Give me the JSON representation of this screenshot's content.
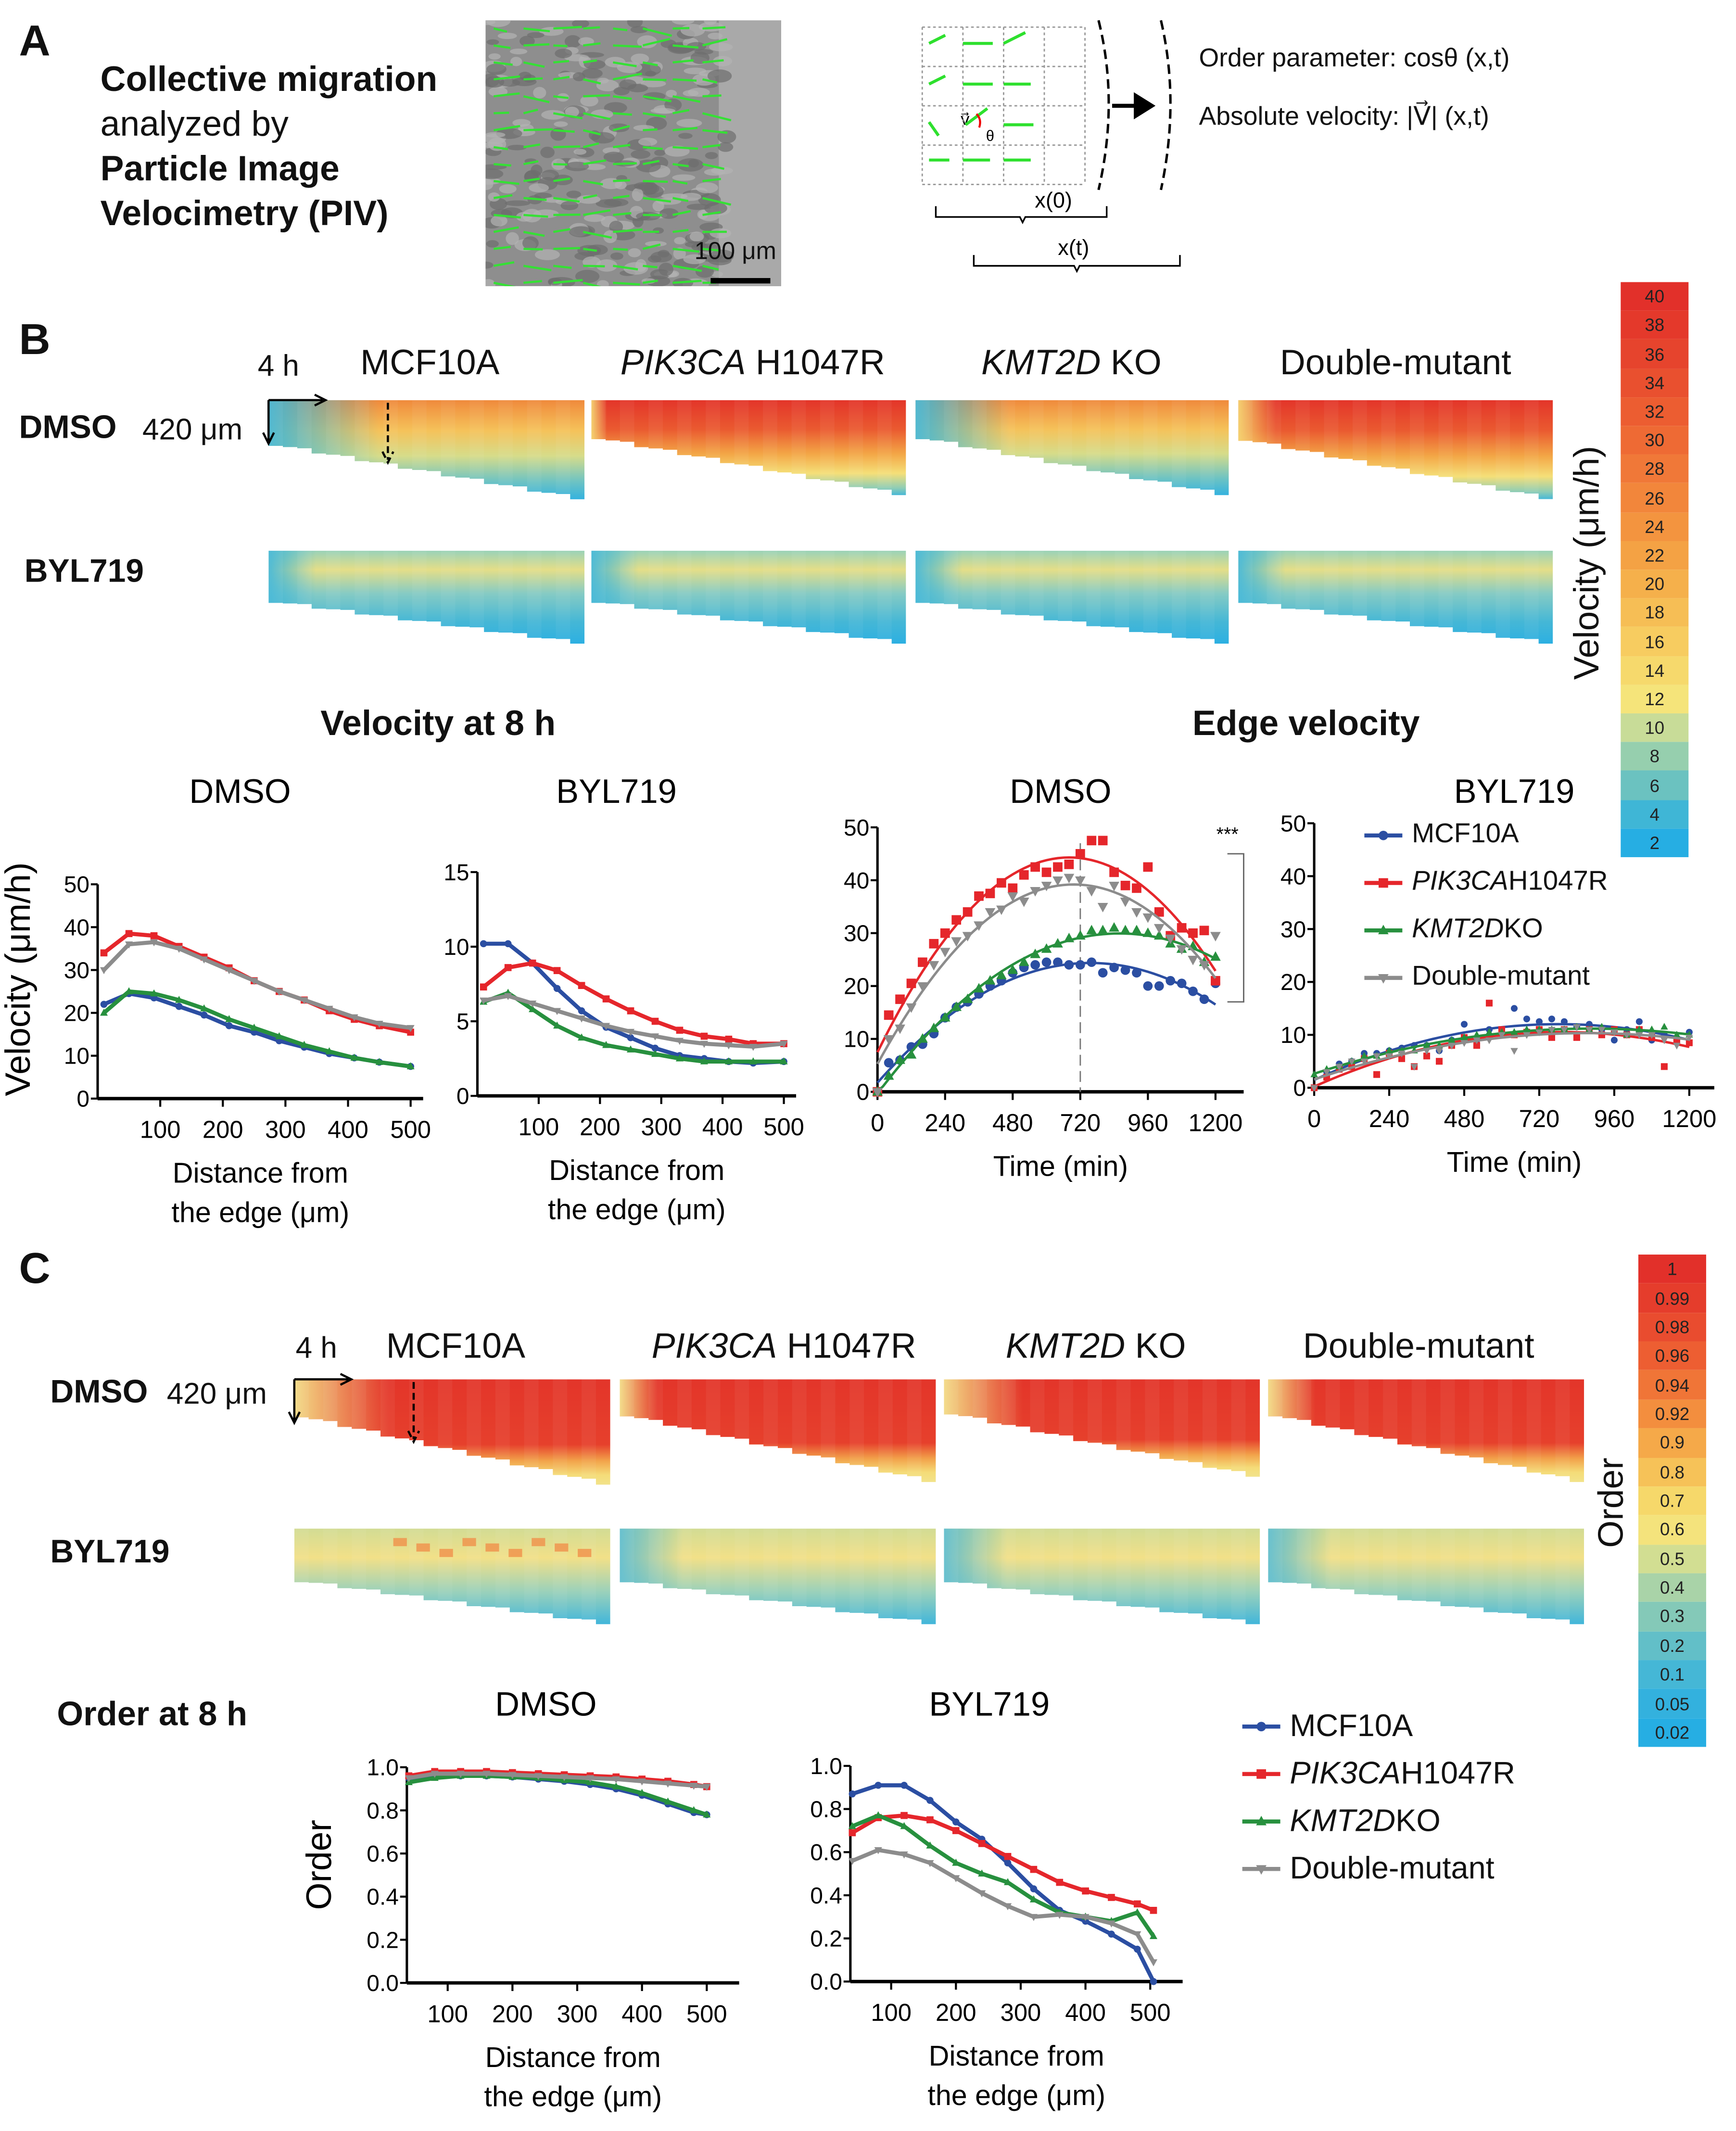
{
  "panel_a": {
    "label": "A",
    "title_lines": [
      "Collective migration",
      "analyzed by",
      "Particle Image",
      "Velocimetry (PIV)"
    ],
    "scale_bar": "100 μm",
    "schematic": {
      "vector": "v⃗",
      "theta": "θ",
      "x0": "x(0)",
      "xt": "x(t)",
      "order_parameter": "Order parameter: cosθ (x,t)",
      "absolute_velocity": "Absolute velocity:  |V⃗| (x,t)"
    }
  },
  "panel_b": {
    "label": "B",
    "time": "4 h",
    "depth": "420 μm",
    "columns": [
      {
        "italic": "",
        "text": "MCF10A"
      },
      {
        "italic": "PIK3CA",
        "text": " H1047R"
      },
      {
        "italic": "KMT2D",
        "text": " KO"
      },
      {
        "italic": "",
        "text": "Double-mutant"
      }
    ],
    "rows": [
      "DMSO",
      "BYL719"
    ],
    "colorbar": {
      "title": "Velocity (μm/h)",
      "labels": [
        "40",
        "38",
        "36",
        "34",
        "32",
        "30",
        "28",
        "26",
        "24",
        "22",
        "20",
        "18",
        "16",
        "14",
        "12",
        "10",
        "8",
        "6",
        "4",
        "2"
      ],
      "colors": [
        "#e2302a",
        "#e4392b",
        "#e6442d",
        "#e9502f",
        "#ec5d31",
        "#ee6a34",
        "#f07838",
        "#f2863b",
        "#f3943f",
        "#f4a244",
        "#f5b04b",
        "#f6be55",
        "#f7cc60",
        "#f6d96c",
        "#f5e47a",
        "#c8dc98",
        "#96cfae",
        "#6bc2c0",
        "#3fb6d6",
        "#26aee3"
      ]
    },
    "section_titles": {
      "velocity_8h": "Velocity at 8 h",
      "edge_velocity": "Edge velocity"
    }
  },
  "panel_c": {
    "label": "C",
    "time": "4 h",
    "depth": "420 μm",
    "columns": [
      {
        "italic": "",
        "text": "MCF10A"
      },
      {
        "italic": "PIK3CA",
        "text": " H1047R"
      },
      {
        "italic": "KMT2D",
        "text": " KO"
      },
      {
        "italic": "",
        "text": "Double-mutant"
      }
    ],
    "rows": [
      "DMSO",
      "BYL719"
    ],
    "colorbar": {
      "title": "Order",
      "labels": [
        "1",
        "0.99",
        "0.98",
        "0.96",
        "0.94",
        "0.92",
        "0.9",
        "0.8",
        "0.7",
        "0.6",
        "0.5",
        "0.4",
        "0.3",
        "0.2",
        "0.1",
        "0.05",
        "0.02"
      ],
      "colors": [
        "#e2302a",
        "#e53d2c",
        "#e94c2f",
        "#ed5e32",
        "#f07537",
        "#f38e3e",
        "#f5a949",
        "#f6c258",
        "#f6d86a",
        "#f4e37c",
        "#d2de92",
        "#a9d3a8",
        "#84c9b8",
        "#62bfc8",
        "#45b7d6",
        "#33b1de",
        "#26aee3"
      ]
    },
    "section_title": "Order at 8 h"
  },
  "legend": {
    "items": [
      {
        "italic": "",
        "text": "MCF10A",
        "color": "#2b4ea2",
        "marker": "circle"
      },
      {
        "italic": "PIK3CA",
        "text": " H1047R",
        "color": "#e5262b",
        "marker": "square"
      },
      {
        "italic": "KMT2D",
        "text": " KO",
        "color": "#27903e",
        "marker": "triangle"
      },
      {
        "italic": "",
        "text": "Double-mutant",
        "color": "#8c8c8c",
        "marker": "triangle-down"
      }
    ]
  },
  "chart_data": [
    {
      "type": "line",
      "title": "DMSO",
      "ylabel": "Velocity (μm/h)",
      "xlabel_lines": [
        "Distance from",
        "the edge (μm)"
      ],
      "xlim": [
        0,
        520
      ],
      "ylim": [
        0,
        50
      ],
      "xticks": [
        100,
        200,
        300,
        400,
        500
      ],
      "yticks": [
        0,
        10,
        20,
        30,
        40,
        50
      ],
      "x": [
        10,
        50,
        90,
        130,
        170,
        210,
        250,
        290,
        330,
        370,
        410,
        450,
        500
      ],
      "series": [
        {
          "name": "MCF10A",
          "values": [
            22,
            24.5,
            23.5,
            21.5,
            19.5,
            17,
            15.5,
            13.5,
            12,
            10.5,
            9.5,
            8.5,
            7.5
          ]
        },
        {
          "name": "PIK3CA H1047R",
          "values": [
            34,
            38.5,
            38,
            35.5,
            33,
            30.5,
            27.5,
            25,
            23,
            20.5,
            18.5,
            17,
            15.5
          ]
        },
        {
          "name": "KMT2D KO",
          "values": [
            20,
            25,
            24.5,
            23,
            21,
            18.5,
            16.5,
            14.5,
            12.5,
            11,
            9.5,
            8.5,
            7.5
          ]
        },
        {
          "name": "Double-mutant",
          "values": [
            30,
            36,
            36.5,
            35,
            32.5,
            30,
            27.5,
            25,
            23,
            21,
            19,
            17.5,
            16.5
          ]
        }
      ]
    },
    {
      "type": "line",
      "title": "BYL719",
      "xlabel_lines": [
        "Distance from",
        "the edge (μm)"
      ],
      "xlim": [
        0,
        520
      ],
      "ylim": [
        0,
        15
      ],
      "xticks": [
        100,
        200,
        300,
        400,
        500
      ],
      "yticks": [
        0,
        5,
        10,
        15
      ],
      "x": [
        10,
        50,
        90,
        130,
        170,
        210,
        250,
        290,
        330,
        370,
        410,
        450,
        500
      ],
      "series": [
        {
          "name": "MCF10A",
          "values": [
            10.2,
            10.2,
            8.9,
            7.2,
            5.7,
            4.6,
            3.9,
            3.2,
            2.7,
            2.5,
            2.3,
            2.2,
            2.3
          ]
        },
        {
          "name": "PIK3CA H1047R",
          "values": [
            7.3,
            8.6,
            8.9,
            8.4,
            7.4,
            6.5,
            5.7,
            5.0,
            4.4,
            4.0,
            3.8,
            3.5,
            3.5
          ]
        },
        {
          "name": "KMT2D KO",
          "values": [
            6.3,
            6.9,
            5.8,
            4.7,
            3.9,
            3.4,
            3.1,
            2.8,
            2.5,
            2.3,
            2.3,
            2.3,
            2.3
          ]
        },
        {
          "name": "Double-mutant",
          "values": [
            6.4,
            6.7,
            6.2,
            5.7,
            5.2,
            4.7,
            4.3,
            4.0,
            3.7,
            3.5,
            3.4,
            3.3,
            3.5
          ]
        }
      ]
    },
    {
      "type": "scatter",
      "fit": "quadratic",
      "title": "DMSO",
      "xlabel_lines": [
        "Time (min)"
      ],
      "xlim": [
        0,
        1300
      ],
      "ylim": [
        0,
        50
      ],
      "xticks": [
        0,
        240,
        480,
        720,
        960,
        1200
      ],
      "yticks": [
        0,
        10,
        20,
        30,
        40,
        50
      ],
      "reference_line_x": 720,
      "significance": "***",
      "x": [
        0,
        40,
        80,
        120,
        160,
        200,
        240,
        280,
        320,
        360,
        400,
        440,
        480,
        520,
        560,
        600,
        640,
        680,
        720,
        760,
        800,
        840,
        880,
        920,
        960,
        1000,
        1040,
        1080,
        1120,
        1160,
        1200
      ],
      "series": [
        {
          "name": "MCF10A",
          "values": [
            0,
            5.5,
            6,
            8.5,
            9,
            11,
            14,
            16,
            17,
            18.5,
            20,
            21,
            22.5,
            23.5,
            24,
            24.5,
            24.5,
            24,
            24,
            24.5,
            22.5,
            23.5,
            23,
            22.5,
            20,
            20,
            21,
            20.5,
            19,
            17.5,
            20.5
          ]
        },
        {
          "name": "PIK3CA H1047R",
          "values": [
            0,
            14.5,
            17.5,
            20.5,
            24.5,
            28,
            30,
            32.5,
            34,
            37,
            37.5,
            39.5,
            38.5,
            41,
            42.5,
            41.5,
            42.5,
            43,
            45,
            47.5,
            47.5,
            41.5,
            39,
            38.5,
            42.5,
            34,
            29.5,
            31,
            30,
            30.5,
            21
          ]
        },
        {
          "name": "KMT2D KO",
          "values": [
            0,
            3,
            6,
            7,
            10,
            12,
            14,
            16,
            17.5,
            19.5,
            21,
            22,
            23,
            24.5,
            26,
            27,
            28,
            29,
            29.5,
            30.5,
            30.5,
            31,
            30.5,
            30.5,
            30,
            29.5,
            28,
            27,
            27.5,
            24.5,
            25.5
          ]
        },
        {
          "name": "Double-mutant",
          "values": [
            0,
            10,
            12,
            16,
            20,
            24,
            26.5,
            28.5,
            29.5,
            31.5,
            34,
            34.5,
            37,
            36,
            38,
            39,
            40,
            40.5,
            40,
            38,
            35,
            39,
            36,
            34,
            33,
            31,
            29,
            27,
            25,
            24,
            29.5
          ]
        }
      ]
    },
    {
      "type": "scatter",
      "fit": "quadratic",
      "title": "BYL719",
      "xlabel_lines": [
        "Time (min)"
      ],
      "xlim": [
        0,
        1280
      ],
      "ylim": [
        0,
        50
      ],
      "xticks": [
        0,
        240,
        480,
        720,
        960,
        1200
      ],
      "yticks": [
        0,
        10,
        20,
        30,
        40,
        50
      ],
      "x": [
        0,
        40,
        80,
        120,
        160,
        200,
        240,
        280,
        320,
        360,
        400,
        440,
        480,
        520,
        560,
        600,
        640,
        680,
        720,
        760,
        800,
        840,
        880,
        920,
        960,
        1000,
        1040,
        1080,
        1120,
        1160,
        1200
      ],
      "series": [
        {
          "name": "MCF10A",
          "values": [
            0,
            3,
            4.5,
            5,
            6.5,
            6.5,
            7,
            7.5,
            8,
            8,
            7,
            9,
            12,
            9,
            11,
            11,
            15,
            13,
            12.5,
            13,
            12.5,
            11.5,
            12,
            11,
            9,
            11,
            12.5,
            9,
            10,
            9,
            10.5
          ]
        },
        {
          "name": "PIK3CA H1047R",
          "values": [
            0,
            2,
            3.5,
            4,
            5.5,
            2.5,
            6.5,
            5.5,
            4,
            6,
            5,
            8,
            9.5,
            8,
            16,
            11,
            10,
            10.5,
            11,
            9.5,
            11,
            9.5,
            11,
            10,
            11,
            10,
            11,
            9.5,
            4,
            9,
            8.5
          ]
        },
        {
          "name": "KMT2D KO",
          "values": [
            2.5,
            3.5,
            4,
            5,
            6,
            6,
            7,
            7,
            7,
            8,
            8,
            9,
            9.5,
            10,
            10.5,
            10.5,
            10.5,
            11,
            11,
            11,
            11,
            11.5,
            11,
            11.5,
            10.5,
            10,
            11,
            11,
            11.5,
            10,
            10
          ]
        },
        {
          "name": "Double-mutant",
          "values": [
            0,
            3,
            4,
            5,
            5,
            6,
            6,
            6.5,
            4,
            7,
            7,
            8,
            8.5,
            9,
            9,
            10,
            7,
            10,
            10.5,
            11,
            11,
            11.5,
            11,
            11,
            10.5,
            10,
            10,
            10,
            9,
            8,
            9.5
          ]
        }
      ]
    },
    {
      "type": "line",
      "title": "DMSO",
      "ylabel": "Order",
      "xlabel_lines": [
        "Distance from",
        "the edge (μm)"
      ],
      "xlim": [
        37,
        550
      ],
      "ylim": [
        0,
        1
      ],
      "xticks": [
        100,
        200,
        300,
        400,
        500
      ],
      "yticks": [
        "0.0",
        "0.2",
        "0.4",
        "0.6",
        "0.8",
        "1.0"
      ],
      "x": [
        40,
        80,
        120,
        160,
        200,
        240,
        280,
        320,
        360,
        400,
        440,
        480,
        500
      ],
      "series": [
        {
          "name": "MCF10A",
          "values": [
            0.95,
            0.96,
            0.96,
            0.96,
            0.955,
            0.945,
            0.935,
            0.92,
            0.9,
            0.87,
            0.83,
            0.79,
            0.78
          ]
        },
        {
          "name": "PIK3CA H1047R",
          "values": [
            0.96,
            0.98,
            0.98,
            0.98,
            0.975,
            0.97,
            0.965,
            0.96,
            0.955,
            0.945,
            0.935,
            0.92,
            0.91
          ]
        },
        {
          "name": "KMT2D KO",
          "values": [
            0.93,
            0.95,
            0.96,
            0.96,
            0.955,
            0.95,
            0.94,
            0.93,
            0.91,
            0.88,
            0.84,
            0.8,
            0.78
          ]
        },
        {
          "name": "Double-mutant",
          "values": [
            0.95,
            0.97,
            0.97,
            0.97,
            0.965,
            0.96,
            0.955,
            0.95,
            0.945,
            0.935,
            0.925,
            0.915,
            0.91
          ]
        }
      ]
    },
    {
      "type": "line",
      "title": "BYL719",
      "xlabel_lines": [
        "Distance from",
        "the edge (μm)"
      ],
      "xlim": [
        37,
        550
      ],
      "ylim": [
        0,
        1
      ],
      "xticks": [
        100,
        200,
        300,
        400,
        500
      ],
      "yticks": [
        "0.0",
        "0.2",
        "0.4",
        "0.6",
        "0.8",
        "1.0"
      ],
      "x": [
        40,
        80,
        120,
        160,
        200,
        240,
        280,
        320,
        360,
        400,
        440,
        480,
        505
      ],
      "series": [
        {
          "name": "MCF10A",
          "values": [
            0.87,
            0.91,
            0.91,
            0.84,
            0.74,
            0.66,
            0.55,
            0.43,
            0.33,
            0.28,
            0.22,
            0.15,
            0.0
          ]
        },
        {
          "name": "PIK3CA H1047R",
          "values": [
            0.69,
            0.76,
            0.77,
            0.75,
            0.7,
            0.64,
            0.58,
            0.52,
            0.46,
            0.42,
            0.39,
            0.36,
            0.33
          ]
        },
        {
          "name": "KMT2D KO",
          "values": [
            0.72,
            0.77,
            0.72,
            0.63,
            0.55,
            0.5,
            0.46,
            0.38,
            0.32,
            0.3,
            0.28,
            0.32,
            0.21
          ]
        },
        {
          "name": "Double-mutant",
          "values": [
            0.56,
            0.61,
            0.59,
            0.55,
            0.48,
            0.41,
            0.35,
            0.3,
            0.31,
            0.3,
            0.27,
            0.22,
            0.09
          ]
        }
      ]
    }
  ]
}
